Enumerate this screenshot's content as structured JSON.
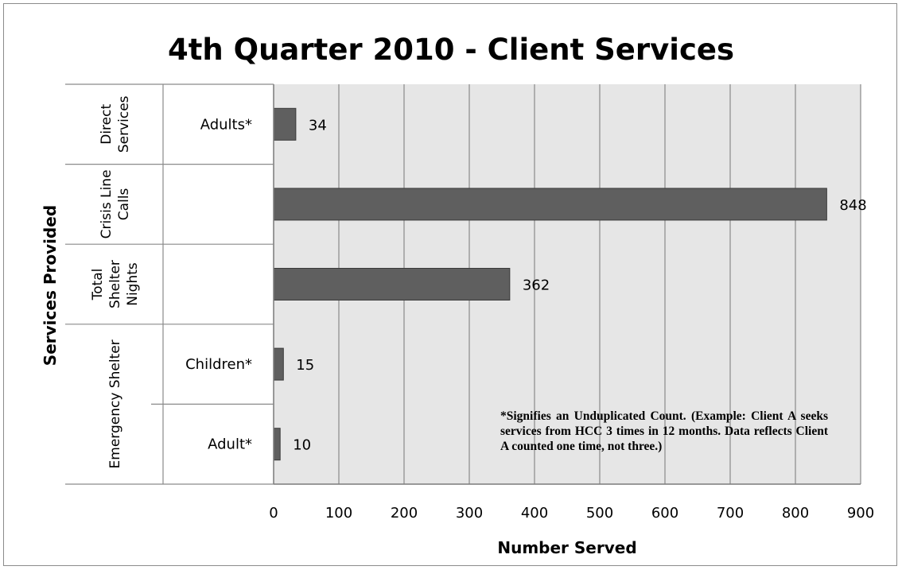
{
  "chart_data": {
    "type": "bar",
    "orientation": "horizontal",
    "title": "4th Quarter 2010 - Client Services",
    "xlabel": "Number Served",
    "ylabel": "Services Provided",
    "xlim": [
      0,
      900
    ],
    "xticks": [
      0,
      100,
      200,
      300,
      400,
      500,
      600,
      700,
      800,
      900
    ],
    "grid": true,
    "legend": "none",
    "bar_color": "#5f5f5f",
    "plot_background": "#e6e6e6",
    "groups": [
      {
        "label_lines": [
          "Direct",
          "Services"
        ],
        "categories": [
          0
        ]
      },
      {
        "label_lines": [
          "Crisis Line",
          "Calls"
        ],
        "categories": [
          1
        ]
      },
      {
        "label_lines": [
          "Total",
          "Shelter",
          "Nights"
        ],
        "categories": [
          2
        ]
      },
      {
        "label_lines": [
          "Emergency Shelter"
        ],
        "categories": [
          3,
          4
        ]
      }
    ],
    "categories": [
      {
        "label": "Adults*",
        "value": 34
      },
      {
        "label": "",
        "value": 848
      },
      {
        "label": "",
        "value": 362
      },
      {
        "label": "Children*",
        "value": 15
      },
      {
        "label": "Adult*",
        "value": 10
      }
    ],
    "annotation": "*Signifies an Unduplicated Count. (Example: Client A seeks services from HCC 3 times in 12 months. Data reflects Client A counted one time, not three.)"
  }
}
